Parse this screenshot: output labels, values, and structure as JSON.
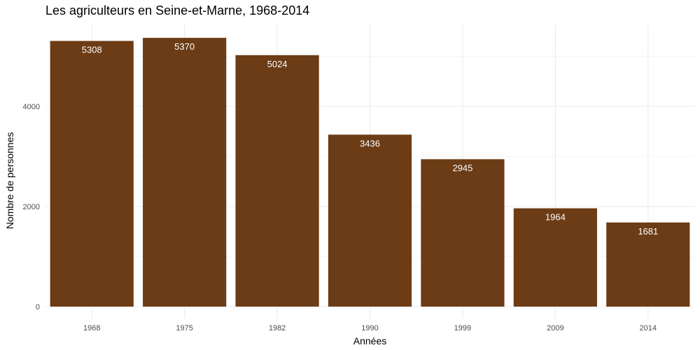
{
  "chart_data": {
    "type": "bar",
    "title": "Les agriculteurs en Seine-et-Marne, 1968-2014",
    "xlabel": "Années",
    "ylabel": "Nombre de personnes",
    "categories": [
      "1968",
      "1975",
      "1982",
      "1990",
      "1999",
      "2009",
      "2014"
    ],
    "values": [
      5308,
      5370,
      5024,
      3436,
      2945,
      1964,
      1681
    ],
    "data_labels": [
      "5308",
      "5370",
      "5024",
      "3436",
      "2945",
      "1964",
      "1681"
    ],
    "yticks": [
      0,
      2000,
      4000
    ],
    "ytick_labels": [
      "0",
      "2000",
      "4000"
    ],
    "ylim": [
      0,
      5638
    ],
    "grid": true,
    "bar_color": "#6b3c16",
    "grid_color": "#ebebeb",
    "background": "#ffffff"
  }
}
